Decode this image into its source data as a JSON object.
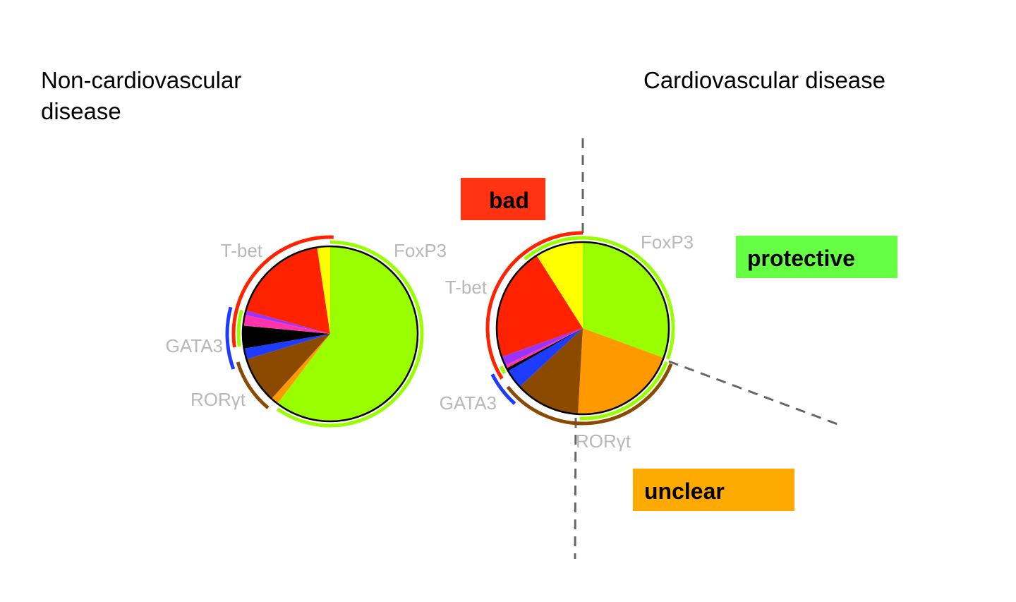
{
  "titles": {
    "left": "Non-cardiovascular disease",
    "right": "Cardiovascular disease"
  },
  "annotations": [
    {
      "text": "bad",
      "color": "#ff3311"
    },
    {
      "text": "protective",
      "color": "#66ff44"
    },
    {
      "text": "unclear",
      "color": "#ffaa00"
    }
  ],
  "colors": {
    "FoxP3": "#99ff00",
    "orange": "#ff9900",
    "RORgt": "#8b4a00",
    "GATA3": "#1e3cff",
    "black": "#000000",
    "pink": "#ff33aa",
    "purple": "#9933ff",
    "T-bet": "#ff2200",
    "yellow": "#ffff00",
    "divider": "#666666"
  },
  "chart_data": [
    {
      "type": "pie",
      "title": "Non-cardiovascular disease",
      "slice_colors": [
        "#99ff00",
        "#ff9900",
        "#8b4a00",
        "#1e3cff",
        "#000000",
        "#ff33aa",
        "#9933ff",
        "#ff2200",
        "#ffff00"
      ],
      "values_percent": [
        60.3,
        1.4,
        8.6,
        2.0,
        4.2,
        2.0,
        0.8,
        18.3,
        2.4
      ],
      "labels": [
        "FoxP3",
        "T-bet",
        "GATA3",
        "RORγt"
      ],
      "arcs_degrees": [
        {
          "marker": "FoxP3",
          "color": "#99ff00",
          "from": 0,
          "to": 215,
          "ring": 1
        },
        {
          "marker": "FoxP3",
          "color": "#99ff00",
          "from": 262,
          "to": 285,
          "ring": 1
        },
        {
          "marker": "T-bet",
          "color": "#ff2200",
          "from": 262,
          "to": 362,
          "ring": 2
        },
        {
          "marker": "GATA3",
          "color": "#1e3cff",
          "from": 250,
          "to": 285,
          "ring": 3
        },
        {
          "marker": "RORγt",
          "color": "#8b4a00",
          "from": 220,
          "to": 253,
          "ring": 2
        }
      ]
    },
    {
      "type": "pie",
      "title": "Cardiovascular disease",
      "slice_colors": [
        "#99ff00",
        "#ff9900",
        "#8b4a00",
        "#1e3cff",
        "#000000",
        "#ff33aa",
        "#9933ff",
        "#ff2200",
        "#ffff00"
      ],
      "values_percent": [
        30.6,
        20.3,
        12.2,
        3.6,
        0.6,
        0.6,
        1.7,
        21.4,
        9.0
      ],
      "labels": [
        "FoxP3",
        "T-bet",
        "GATA3",
        "RORγt"
      ],
      "arcs_degrees": [
        {
          "marker": "FoxP3",
          "color": "#99ff00",
          "from": 0,
          "to": 110,
          "ring": 1
        },
        {
          "marker": "FoxP3",
          "color": "#99ff00",
          "from": 112,
          "to": 182,
          "ring": 1
        },
        {
          "marker": "FoxP3",
          "color": "#99ff00",
          "from": 320,
          "to": 360,
          "ring": 1
        },
        {
          "marker": "FoxP3",
          "color": "#99ff00",
          "from": 240,
          "to": 245,
          "ring": 1
        },
        {
          "marker": "T-bet",
          "color": "#ff2200",
          "from": 238,
          "to": 360,
          "ring": 2
        },
        {
          "marker": "RORγt",
          "color": "#8b4a00",
          "from": 112,
          "to": 232,
          "ring": 2
        },
        {
          "marker": "GATA3",
          "color": "#1e3cff",
          "from": 222,
          "to": 243,
          "ring": 3
        }
      ]
    }
  ]
}
